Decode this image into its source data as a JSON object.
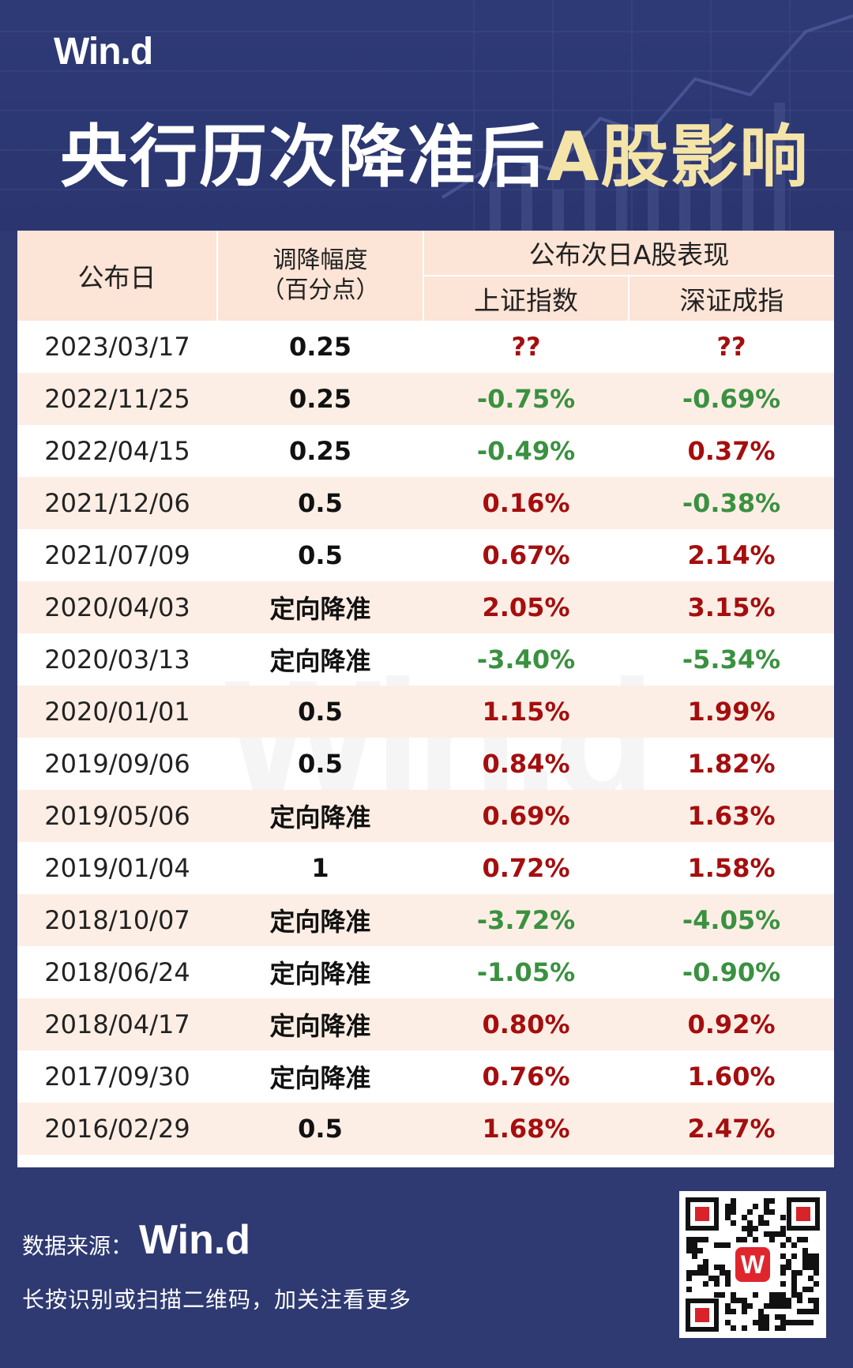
{
  "header": {
    "logo": "Win.d",
    "title_main": "央行历次降准后",
    "title_highlight": "A股影响"
  },
  "table": {
    "col_date": "公布日",
    "col_cut_line1": "调降幅度",
    "col_cut_line2": "（百分点）",
    "col_group": "公布次日A股表现",
    "col_sh": "上证指数",
    "col_sz": "深证成指",
    "rows": [
      {
        "date": "2023/03/17",
        "cut": "0.25",
        "sh": "??",
        "sz": "??"
      },
      {
        "date": "2022/11/25",
        "cut": "0.25",
        "sh": "-0.75%",
        "sz": "-0.69%"
      },
      {
        "date": "2022/04/15",
        "cut": "0.25",
        "sh": "-0.49%",
        "sz": "0.37%"
      },
      {
        "date": "2021/12/06",
        "cut": "0.5",
        "sh": "0.16%",
        "sz": "-0.38%"
      },
      {
        "date": "2021/07/09",
        "cut": "0.5",
        "sh": "0.67%",
        "sz": "2.14%"
      },
      {
        "date": "2020/04/03",
        "cut": "定向降准",
        "sh": "2.05%",
        "sz": "3.15%"
      },
      {
        "date": "2020/03/13",
        "cut": "定向降准",
        "sh": "-3.40%",
        "sz": "-5.34%"
      },
      {
        "date": "2020/01/01",
        "cut": "0.5",
        "sh": "1.15%",
        "sz": "1.99%"
      },
      {
        "date": "2019/09/06",
        "cut": "0.5",
        "sh": "0.84%",
        "sz": "1.82%"
      },
      {
        "date": "2019/05/06",
        "cut": "定向降准",
        "sh": "0.69%",
        "sz": "1.63%"
      },
      {
        "date": "2019/01/04",
        "cut": "1",
        "sh": "0.72%",
        "sz": "1.58%"
      },
      {
        "date": "2018/10/07",
        "cut": "定向降准",
        "sh": "-3.72%",
        "sz": "-4.05%"
      },
      {
        "date": "2018/06/24",
        "cut": "定向降准",
        "sh": "-1.05%",
        "sz": "-0.90%"
      },
      {
        "date": "2018/04/17",
        "cut": "定向降准",
        "sh": "0.80%",
        "sz": "0.92%"
      },
      {
        "date": "2017/09/30",
        "cut": "定向降准",
        "sh": "0.76%",
        "sz": "1.60%"
      },
      {
        "date": "2016/02/29",
        "cut": "0.5",
        "sh": "1.68%",
        "sz": "2.47%"
      }
    ]
  },
  "footer": {
    "source_label": "数据来源：",
    "source_logo": "Win.d",
    "note": "长按识别或扫描二维码，加关注看更多",
    "qr_badge": "W"
  },
  "colors": {
    "background": "#2f3a72",
    "header_fill": "#fce4d6",
    "stripe": "#fdeee5",
    "positive": "#a50e0e",
    "negative": "#3a9140",
    "title_highlight": "#f4e4a8"
  }
}
